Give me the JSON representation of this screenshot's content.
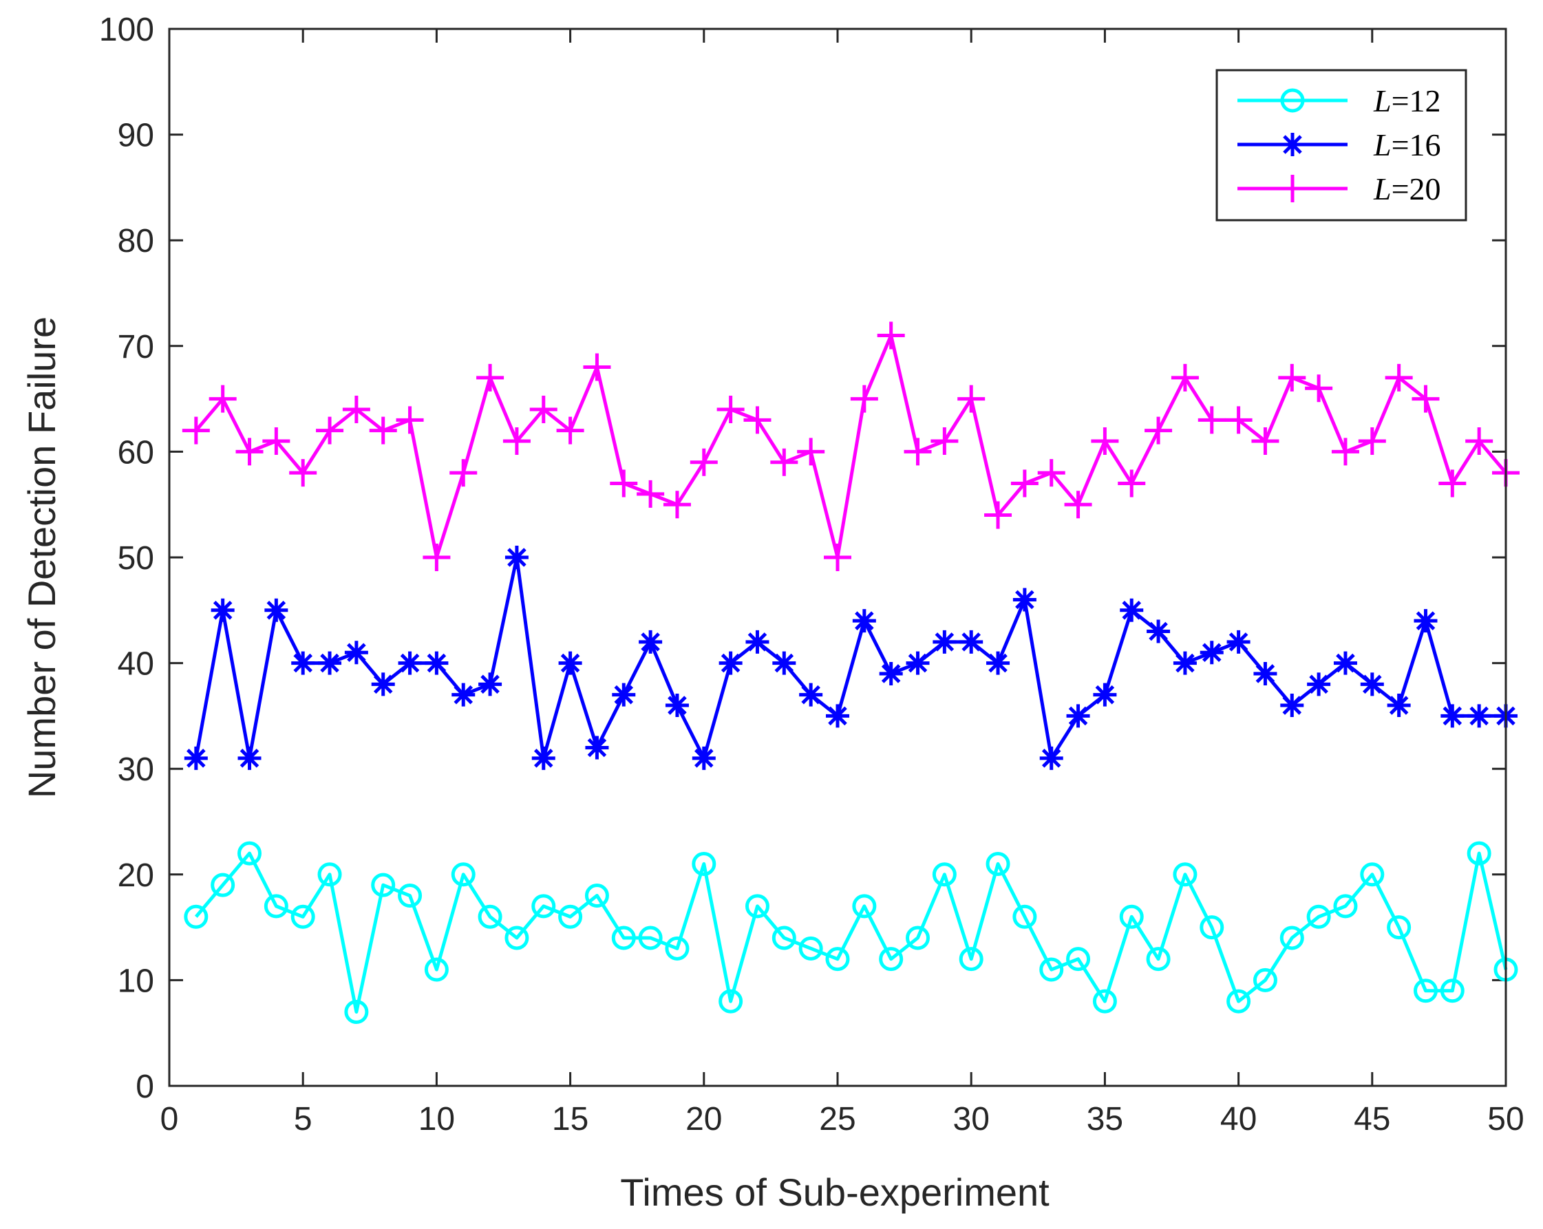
{
  "chart_data": {
    "type": "line",
    "title": "",
    "xlabel": "Times of Sub-experiment",
    "ylabel": "Number of Detection Failure",
    "xlim": [
      0,
      50
    ],
    "ylim": [
      0,
      100
    ],
    "xticks": [
      0,
      5,
      10,
      15,
      20,
      25,
      30,
      35,
      40,
      45,
      50
    ],
    "yticks": [
      0,
      10,
      20,
      30,
      40,
      50,
      60,
      70,
      80,
      90,
      100
    ],
    "grid": false,
    "legend_position": "top-right",
    "x": [
      1,
      2,
      3,
      4,
      5,
      6,
      7,
      8,
      9,
      10,
      11,
      12,
      13,
      14,
      15,
      16,
      17,
      18,
      19,
      20,
      21,
      22,
      23,
      24,
      25,
      26,
      27,
      28,
      29,
      30,
      31,
      32,
      33,
      34,
      35,
      36,
      37,
      38,
      39,
      40,
      41,
      42,
      43,
      44,
      45,
      46,
      47,
      48,
      49,
      50
    ],
    "series": [
      {
        "name": "L=12",
        "name_italic": "L",
        "name_rest": "=12",
        "color": "#00FFFF",
        "marker": "circle",
        "values": [
          16,
          19,
          22,
          17,
          16,
          20,
          7,
          19,
          18,
          11,
          20,
          16,
          14,
          17,
          16,
          18,
          14,
          14,
          13,
          21,
          8,
          17,
          14,
          13,
          12,
          17,
          12,
          14,
          20,
          12,
          21,
          16,
          11,
          12,
          8,
          16,
          12,
          20,
          15,
          8,
          10,
          14,
          16,
          17,
          20,
          15,
          9,
          9,
          22,
          11
        ]
      },
      {
        "name": "L=16",
        "name_italic": "L",
        "name_rest": "=16",
        "color": "#0000FF",
        "marker": "asterisk",
        "values": [
          31,
          45,
          31,
          45,
          40,
          40,
          41,
          38,
          40,
          40,
          37,
          38,
          50,
          31,
          40,
          32,
          37,
          42,
          36,
          31,
          40,
          42,
          40,
          37,
          35,
          44,
          39,
          40,
          42,
          42,
          40,
          46,
          31,
          35,
          37,
          45,
          43,
          40,
          41,
          42,
          39,
          36,
          38,
          40,
          38,
          36,
          44,
          35,
          35,
          35
        ]
      },
      {
        "name": "L=20",
        "name_italic": "L",
        "name_rest": "=20",
        "color": "#FF00FF",
        "marker": "plus",
        "values": [
          62,
          65,
          60,
          61,
          58,
          62,
          64,
          62,
          63,
          50,
          58,
          67,
          61,
          64,
          62,
          68,
          57,
          56,
          55,
          59,
          64,
          63,
          59,
          60,
          50,
          65,
          71,
          60,
          61,
          65,
          54,
          57,
          58,
          55,
          61,
          57,
          62,
          67,
          63,
          63,
          61,
          67,
          66,
          60,
          61,
          67,
          65,
          57,
          61,
          58
        ]
      }
    ]
  }
}
